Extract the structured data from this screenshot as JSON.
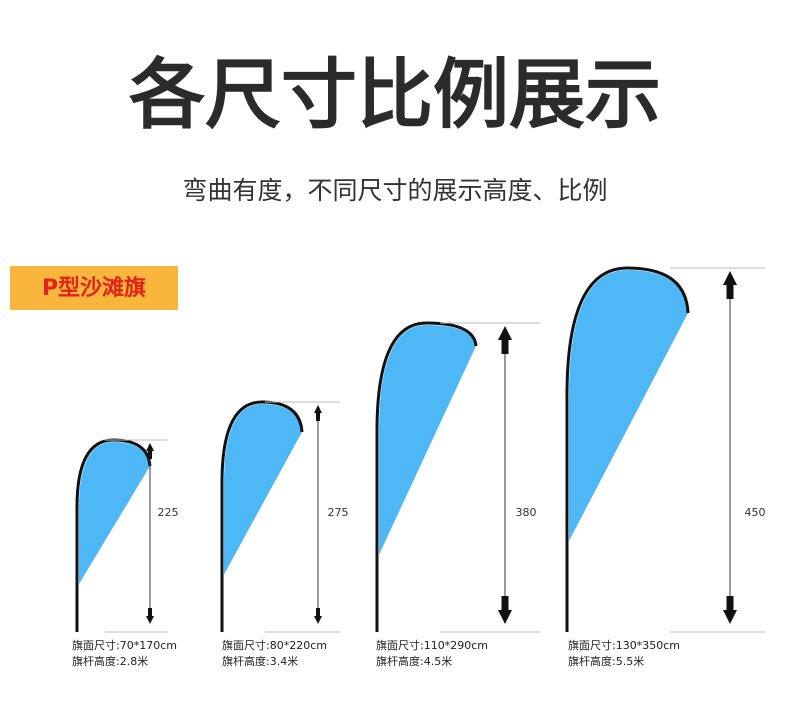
{
  "header": {
    "title": "各尺寸比例展示",
    "subtitle": "弯曲有度，不同尺寸的展示高度、比例"
  },
  "badge": "P型沙滩旗",
  "flags": [
    {
      "height": "225",
      "size": "旗面尺寸:70*170cm",
      "pole": "旗杆高度:2.8米"
    },
    {
      "height": "275",
      "size": "旗面尺寸:80*220cm",
      "pole": "旗杆高度:3.4米"
    },
    {
      "height": "380",
      "size": "旗面尺寸:110*290cm",
      "pole": "旗杆高度:4.5米"
    },
    {
      "height": "450",
      "size": "旗面尺寸:130*350cm",
      "pole": "旗杆高度:5.5米"
    }
  ]
}
